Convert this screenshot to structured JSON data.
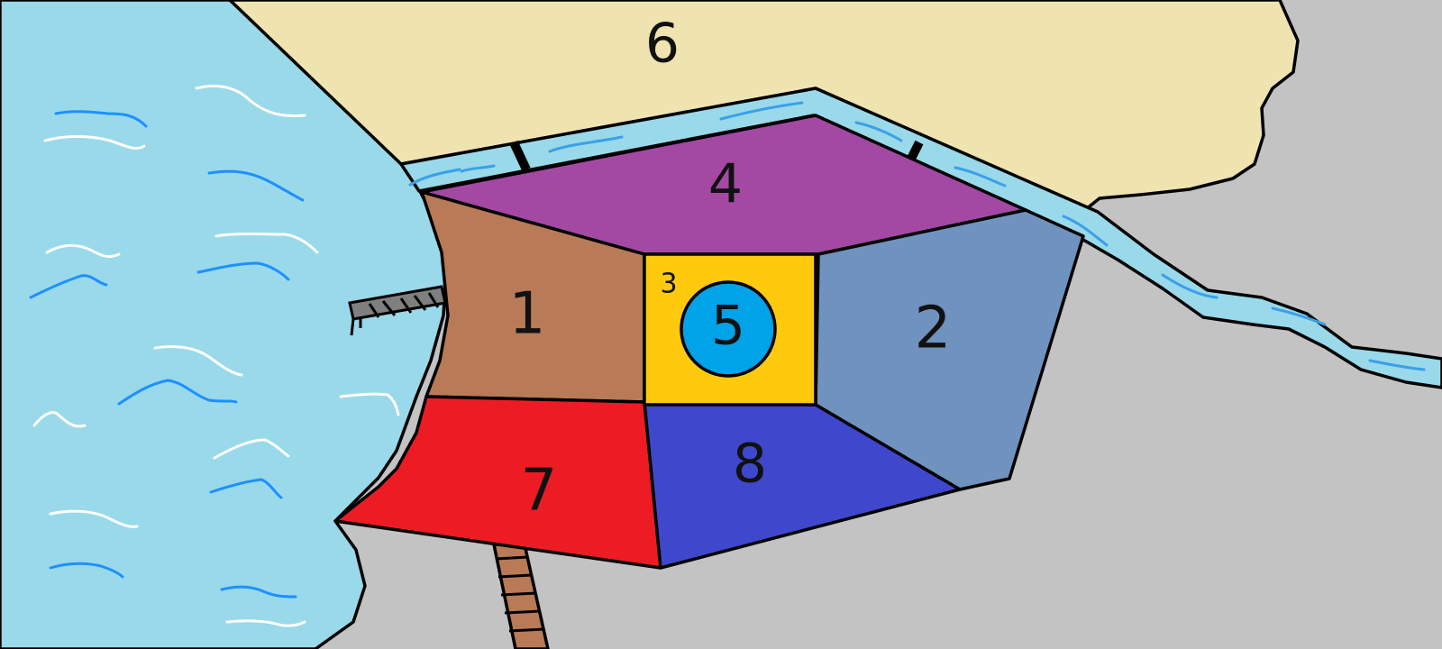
{
  "colors": {
    "ground": "#c3c3c3",
    "sea": "#99d9ea",
    "sand": "#efe4b0",
    "river": "#99d9ea",
    "river_ripple": "#3aa0e8",
    "wave_white": "#ffffff",
    "wave_blue": "#1e90ff",
    "region_1": "#b97a57",
    "region_2": "#7092be",
    "region_3": "#ffc90e",
    "region_4": "#a349a4",
    "region_5": "#00a2e8",
    "region_6": "#efe4b0",
    "region_7": "#ed1c24",
    "region_8": "#3f48cc",
    "pier": "#7f7f7f",
    "road": "#b97a57"
  },
  "regions": {
    "r1": "1",
    "r2": "2",
    "r3": "3",
    "r4": "4",
    "r5": "5",
    "r6": "6",
    "r7": "7",
    "r8": "8"
  }
}
